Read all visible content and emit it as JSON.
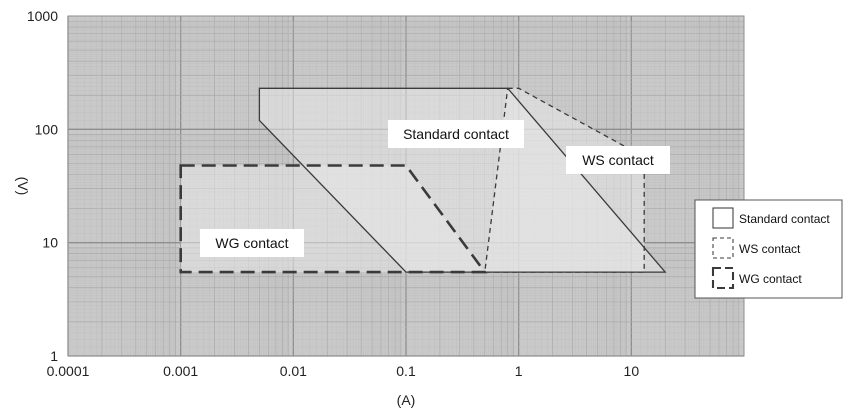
{
  "chart_data": {
    "type": "area",
    "xlabel": "(A)",
    "ylabel": "(V)",
    "xscale": "log",
    "yscale": "log",
    "xlim": [
      0.0001,
      100
    ],
    "ylim": [
      1,
      1000
    ],
    "grid": true,
    "legend_position": "right",
    "x_ticks": [
      {
        "value": 0.0001,
        "label": "0.0001"
      },
      {
        "value": 0.001,
        "label": "0.001"
      },
      {
        "value": 0.01,
        "label": "0.01"
      },
      {
        "value": 0.1,
        "label": "0.1"
      },
      {
        "value": 1,
        "label": "1"
      },
      {
        "value": 10,
        "label": "10"
      }
    ],
    "y_ticks": [
      {
        "value": 1,
        "label": "1"
      },
      {
        "value": 10,
        "label": "10"
      },
      {
        "value": 100,
        "label": "100"
      },
      {
        "value": 1000,
        "label": "1000"
      }
    ],
    "series": [
      {
        "name": "Standard contact",
        "line_style": "solid",
        "points": [
          [
            0.005,
            230
          ],
          [
            0.8,
            230
          ],
          [
            20,
            5.5
          ],
          [
            0.1,
            5.5
          ],
          [
            0.005,
            120
          ]
        ]
      },
      {
        "name": "WS contact",
        "line_style": "short-dash",
        "points": [
          [
            0.8,
            230
          ],
          [
            1,
            230
          ],
          [
            13,
            57
          ],
          [
            13,
            5.5
          ],
          [
            0.5,
            5.5
          ]
        ]
      },
      {
        "name": "WG contact",
        "line_style": "long-dash",
        "points": [
          [
            0.001,
            48
          ],
          [
            0.1,
            48
          ],
          [
            0.5,
            5.5
          ],
          [
            0.001,
            5.5
          ]
        ]
      }
    ],
    "annotations": [
      {
        "text": "Standard contact",
        "series": "Standard contact"
      },
      {
        "text": "WS contact",
        "series": "WS contact"
      },
      {
        "text": "WG contact",
        "series": "WG contact"
      }
    ],
    "colors": {
      "plot_background": "#c9c9c9",
      "grid_line": "#a9a9a9",
      "region_fill": "#e7e7e7",
      "line": "#3a3a3a"
    }
  }
}
